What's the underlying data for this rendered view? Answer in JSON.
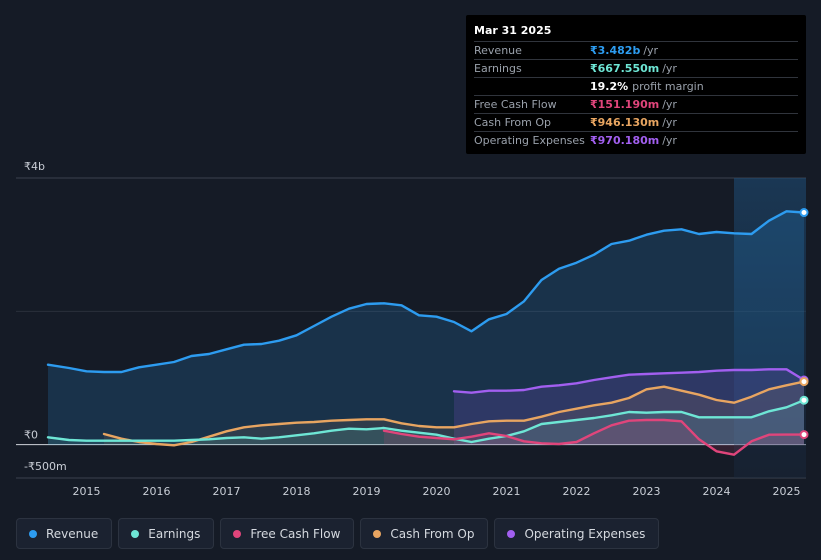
{
  "tooltip": {
    "date": "Mar 31 2025",
    "rows": [
      {
        "label": "Revenue",
        "value": "₹3.482b",
        "unit": "/yr",
        "color": "#2d9cf0"
      },
      {
        "label": "Earnings",
        "value": "₹667.550m",
        "unit": "/yr",
        "color": "#6ee6d5"
      },
      {
        "margin_value": "19.2%",
        "margin_text": "profit margin"
      },
      {
        "label": "Free Cash Flow",
        "value": "₹151.190m",
        "unit": "/yr",
        "color": "#e0457b"
      },
      {
        "label": "Cash From Op",
        "value": "₹946.130m",
        "unit": "/yr",
        "color": "#e8a561"
      },
      {
        "label": "Operating Expenses",
        "value": "₹970.180m",
        "unit": "/yr",
        "color": "#a25ff0"
      }
    ]
  },
  "legend": [
    {
      "label": "Revenue",
      "color": "#2d9cf0"
    },
    {
      "label": "Earnings",
      "color": "#6ee6d5"
    },
    {
      "label": "Free Cash Flow",
      "color": "#e0457b"
    },
    {
      "label": "Cash From Op",
      "color": "#e8a561"
    },
    {
      "label": "Operating Expenses",
      "color": "#a25ff0"
    }
  ],
  "chart_data": {
    "type": "area",
    "title": "",
    "y_tick_labels": [
      "₹4b",
      "₹0",
      "-₹500m"
    ],
    "y_ticks": [
      4000,
      0,
      -500
    ],
    "ylim": [
      -500,
      4000
    ],
    "xlim": [
      2014.45,
      2025.25
    ],
    "x_tick_labels": [
      "2015",
      "2016",
      "2017",
      "2018",
      "2019",
      "2020",
      "2021",
      "2022",
      "2023",
      "2024",
      "2025"
    ],
    "x_ticks": [
      2015,
      2016,
      2017,
      2018,
      2019,
      2020,
      2021,
      2022,
      2023,
      2024,
      2025
    ],
    "highlight_range": [
      2024.25,
      2025.25
    ],
    "series": [
      {
        "name": "Revenue",
        "color": "#2d9cf0",
        "points": [
          [
            2014.45,
            1200
          ],
          [
            2014.75,
            1150
          ],
          [
            2015.0,
            1100
          ],
          [
            2015.25,
            1090
          ],
          [
            2015.5,
            1090
          ],
          [
            2015.75,
            1160
          ],
          [
            2016.0,
            1200
          ],
          [
            2016.25,
            1240
          ],
          [
            2016.5,
            1330
          ],
          [
            2016.75,
            1360
          ],
          [
            2017.0,
            1430
          ],
          [
            2017.25,
            1500
          ],
          [
            2017.5,
            1510
          ],
          [
            2017.75,
            1560
          ],
          [
            2018.0,
            1640
          ],
          [
            2018.25,
            1780
          ],
          [
            2018.5,
            1920
          ],
          [
            2018.75,
            2040
          ],
          [
            2019.0,
            2110
          ],
          [
            2019.25,
            2120
          ],
          [
            2019.5,
            2090
          ],
          [
            2019.75,
            1940
          ],
          [
            2020.0,
            1920
          ],
          [
            2020.25,
            1840
          ],
          [
            2020.5,
            1700
          ],
          [
            2020.75,
            1880
          ],
          [
            2021.0,
            1960
          ],
          [
            2021.25,
            2150
          ],
          [
            2021.5,
            2470
          ],
          [
            2021.75,
            2640
          ],
          [
            2022.0,
            2730
          ],
          [
            2022.25,
            2850
          ],
          [
            2022.5,
            3010
          ],
          [
            2022.75,
            3060
          ],
          [
            2023.0,
            3150
          ],
          [
            2023.25,
            3210
          ],
          [
            2023.5,
            3230
          ],
          [
            2023.75,
            3160
          ],
          [
            2024.0,
            3190
          ],
          [
            2024.25,
            3170
          ],
          [
            2024.5,
            3160
          ],
          [
            2024.75,
            3360
          ],
          [
            2025.0,
            3500
          ],
          [
            2025.25,
            3482
          ]
        ]
      },
      {
        "name": "Operating Expenses",
        "color": "#a25ff0",
        "points": [
          [
            2020.25,
            800
          ],
          [
            2020.5,
            780
          ],
          [
            2020.75,
            810
          ],
          [
            2021.0,
            810
          ],
          [
            2021.25,
            820
          ],
          [
            2021.5,
            870
          ],
          [
            2021.75,
            890
          ],
          [
            2022.0,
            920
          ],
          [
            2022.25,
            970
          ],
          [
            2022.5,
            1010
          ],
          [
            2022.75,
            1050
          ],
          [
            2023.0,
            1060
          ],
          [
            2023.25,
            1070
          ],
          [
            2023.5,
            1080
          ],
          [
            2023.75,
            1090
          ],
          [
            2024.0,
            1110
          ],
          [
            2024.25,
            1120
          ],
          [
            2024.5,
            1120
          ],
          [
            2024.75,
            1130
          ],
          [
            2025.0,
            1130
          ],
          [
            2025.25,
            970
          ]
        ]
      },
      {
        "name": "Cash From Op",
        "color": "#e8a561",
        "points": [
          [
            2015.25,
            160
          ],
          [
            2015.5,
            90
          ],
          [
            2015.75,
            40
          ],
          [
            2016.0,
            10
          ],
          [
            2016.25,
            -10
          ],
          [
            2016.5,
            40
          ],
          [
            2016.75,
            120
          ],
          [
            2017.0,
            200
          ],
          [
            2017.25,
            260
          ],
          [
            2017.5,
            290
          ],
          [
            2017.75,
            310
          ],
          [
            2018.0,
            330
          ],
          [
            2018.25,
            340
          ],
          [
            2018.5,
            360
          ],
          [
            2018.75,
            370
          ],
          [
            2019.0,
            380
          ],
          [
            2019.25,
            380
          ],
          [
            2019.5,
            320
          ],
          [
            2019.75,
            280
          ],
          [
            2020.0,
            260
          ],
          [
            2020.25,
            260
          ],
          [
            2020.5,
            310
          ],
          [
            2020.75,
            350
          ],
          [
            2021.0,
            360
          ],
          [
            2021.25,
            360
          ],
          [
            2021.5,
            420
          ],
          [
            2021.75,
            490
          ],
          [
            2022.0,
            540
          ],
          [
            2022.25,
            590
          ],
          [
            2022.5,
            630
          ],
          [
            2022.75,
            700
          ],
          [
            2023.0,
            830
          ],
          [
            2023.25,
            870
          ],
          [
            2023.5,
            810
          ],
          [
            2023.75,
            750
          ],
          [
            2024.0,
            670
          ],
          [
            2024.25,
            630
          ],
          [
            2024.5,
            720
          ],
          [
            2024.75,
            830
          ],
          [
            2025.0,
            890
          ],
          [
            2025.25,
            946
          ]
        ]
      },
      {
        "name": "Earnings",
        "color": "#6ee6d5",
        "points": [
          [
            2014.45,
            110
          ],
          [
            2014.75,
            70
          ],
          [
            2015.0,
            60
          ],
          [
            2015.25,
            60
          ],
          [
            2015.5,
            60
          ],
          [
            2015.75,
            60
          ],
          [
            2016.0,
            60
          ],
          [
            2016.25,
            60
          ],
          [
            2016.5,
            70
          ],
          [
            2016.75,
            80
          ],
          [
            2017.0,
            100
          ],
          [
            2017.25,
            110
          ],
          [
            2017.5,
            90
          ],
          [
            2017.75,
            110
          ],
          [
            2018.0,
            140
          ],
          [
            2018.25,
            170
          ],
          [
            2018.5,
            210
          ],
          [
            2018.75,
            240
          ],
          [
            2019.0,
            230
          ],
          [
            2019.25,
            250
          ],
          [
            2019.5,
            210
          ],
          [
            2019.75,
            180
          ],
          [
            2020.0,
            150
          ],
          [
            2020.25,
            90
          ],
          [
            2020.5,
            40
          ],
          [
            2020.75,
            90
          ],
          [
            2021.0,
            130
          ],
          [
            2021.25,
            200
          ],
          [
            2021.5,
            310
          ],
          [
            2021.75,
            340
          ],
          [
            2022.0,
            370
          ],
          [
            2022.25,
            400
          ],
          [
            2022.5,
            440
          ],
          [
            2022.75,
            490
          ],
          [
            2023.0,
            480
          ],
          [
            2023.25,
            490
          ],
          [
            2023.5,
            490
          ],
          [
            2023.75,
            410
          ],
          [
            2024.0,
            410
          ],
          [
            2024.25,
            410
          ],
          [
            2024.5,
            410
          ],
          [
            2024.75,
            500
          ],
          [
            2025.0,
            560
          ],
          [
            2025.25,
            667
          ]
        ]
      },
      {
        "name": "Free Cash Flow",
        "color": "#e0457b",
        "points": [
          [
            2019.25,
            210
          ],
          [
            2019.5,
            160
          ],
          [
            2019.75,
            120
          ],
          [
            2020.0,
            100
          ],
          [
            2020.25,
            80
          ],
          [
            2020.5,
            120
          ],
          [
            2020.75,
            170
          ],
          [
            2021.0,
            130
          ],
          [
            2021.25,
            50
          ],
          [
            2021.5,
            20
          ],
          [
            2021.75,
            10
          ],
          [
            2022.0,
            40
          ],
          [
            2022.25,
            170
          ],
          [
            2022.5,
            290
          ],
          [
            2022.75,
            360
          ],
          [
            2023.0,
            370
          ],
          [
            2023.25,
            370
          ],
          [
            2023.5,
            350
          ],
          [
            2023.75,
            80
          ],
          [
            2024.0,
            -100
          ],
          [
            2024.25,
            -150
          ],
          [
            2024.5,
            50
          ],
          [
            2024.75,
            150
          ],
          [
            2025.0,
            151
          ],
          [
            2025.25,
            151
          ]
        ]
      }
    ]
  }
}
